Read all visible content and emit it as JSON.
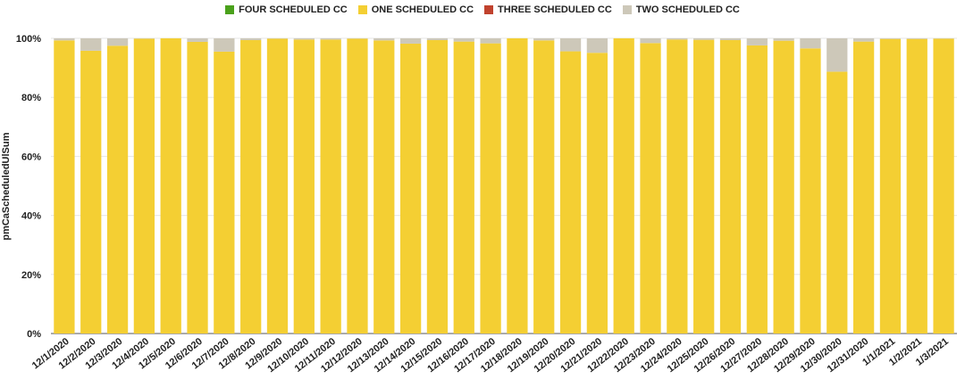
{
  "chart_data": {
    "type": "bar",
    "stacked": true,
    "normalized": true,
    "ylabel": "pmCaScheduledUlSum",
    "xlabel": "",
    "ylim": [
      0,
      100
    ],
    "y_ticks": [
      "0%",
      "20%",
      "40%",
      "60%",
      "80%",
      "100%"
    ],
    "legend_position": "top-center",
    "grid": true,
    "categories": [
      "12/1/2020",
      "12/2/2020",
      "12/3/2020",
      "12/4/2020",
      "12/5/2020",
      "12/6/2020",
      "12/7/2020",
      "12/8/2020",
      "12/9/2020",
      "12/10/2020",
      "12/11/2020",
      "12/12/2020",
      "12/13/2020",
      "12/14/2020",
      "12/15/2020",
      "12/16/2020",
      "12/17/2020",
      "12/18/2020",
      "12/19/2020",
      "12/20/2020",
      "12/21/2020",
      "12/22/2020",
      "12/23/2020",
      "12/24/2020",
      "12/25/2020",
      "12/26/2020",
      "12/27/2020",
      "12/28/2020",
      "12/29/2020",
      "12/30/2020",
      "12/31/2020",
      "1/1/2021",
      "1/2/2021",
      "1/3/2021"
    ],
    "series": [
      {
        "name": "FOUR SCHEDULED CC",
        "color": "#4aa11b",
        "values": [
          0,
          0,
          0,
          0,
          0,
          0,
          0,
          0,
          0,
          0,
          0,
          0,
          0,
          0,
          0,
          0,
          0,
          0,
          0,
          0,
          0,
          0,
          0,
          0,
          0,
          0,
          0,
          0,
          0,
          0,
          0,
          0,
          0,
          0
        ]
      },
      {
        "name": "ONE SCHEDULED CC",
        "color": "#f4cf33",
        "values": [
          99.3,
          95.8,
          97.5,
          99.9,
          100,
          98.8,
          95.5,
          99.4,
          99.9,
          99.6,
          99.6,
          99.9,
          99.3,
          98.2,
          99.4,
          98.9,
          98.3,
          100,
          99.3,
          95.6,
          95.1,
          100,
          98.4,
          99.6,
          99.5,
          99.4,
          97.6,
          99.2,
          96.6,
          88.7,
          98.9,
          99.8,
          99.8,
          99.9
        ]
      },
      {
        "name": "THREE SCHEDULED CC",
        "color": "#c0422e",
        "values": [
          0,
          0,
          0,
          0,
          0,
          0,
          0,
          0,
          0,
          0,
          0,
          0,
          0,
          0,
          0,
          0,
          0,
          0,
          0,
          0,
          0,
          0,
          0,
          0,
          0,
          0,
          0,
          0,
          0,
          0,
          0,
          0,
          0,
          0
        ]
      },
      {
        "name": "TWO SCHEDULED CC",
        "color": "#cdc8b9",
        "values": [
          0.7,
          4.2,
          2.5,
          0.1,
          0,
          1.2,
          4.5,
          0.6,
          0.1,
          0.4,
          0.4,
          0.1,
          0.7,
          1.8,
          0.6,
          1.1,
          1.7,
          0,
          0.7,
          4.4,
          4.9,
          0,
          1.6,
          0.4,
          0.5,
          0.6,
          2.4,
          0.8,
          3.4,
          11.3,
          1.1,
          0.2,
          0.2,
          0.1
        ]
      }
    ]
  }
}
